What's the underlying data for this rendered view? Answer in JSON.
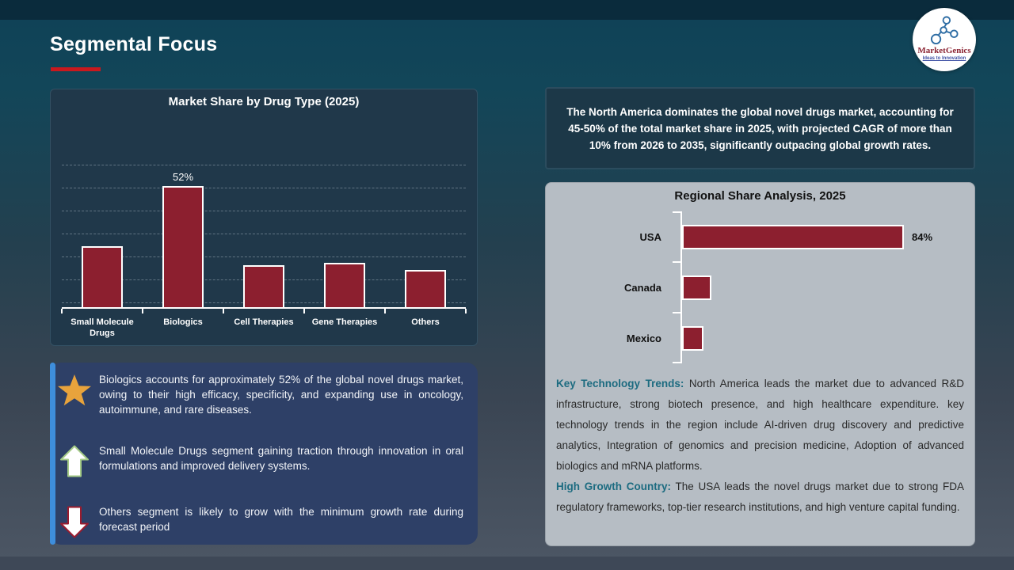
{
  "slide_title": "Segmental Focus",
  "logo": {
    "brand": "MarketGenics",
    "tagline": "Ideas to Innovation"
  },
  "highlight_box": {
    "text": "The North America dominates the global novel drugs market, accounting for 45-50% of the total market share in 2025, with projected CAGR of more than 10% from 2026 to 2035, significantly outpacing global growth rates."
  },
  "chart_data": [
    {
      "type": "bar",
      "title": "Market Share by Drug Type (2025)",
      "categories": [
        "Small Molecule Drugs",
        "Biologics",
        "Cell Therapies",
        "Gene Therapies",
        "Others"
      ],
      "values": [
        26,
        52,
        18,
        19,
        16
      ],
      "unit": "%",
      "data_labels": {
        "Biologics": "52%"
      },
      "ylim": [
        0,
        60
      ],
      "grid": "dashed-horizontal",
      "legend": "none",
      "bar_color": "#8C1F2F"
    },
    {
      "type": "bar",
      "orientation": "horizontal",
      "title": "Regional Share Analysis, 2025",
      "categories": [
        "USA",
        "Canada",
        "Mexico"
      ],
      "values": [
        84,
        11,
        8
      ],
      "unit": "%",
      "data_labels": {
        "USA": "84%"
      },
      "xlim": [
        0,
        100
      ],
      "grid": "off",
      "legend": "none",
      "bar_color": "#8C1F2F"
    }
  ],
  "insights": [
    {
      "icon": "star-icon",
      "text": "Biologics accounts for approximately 52% of the global novel drugs market, owing to their high efficacy, specificity, and expanding use in oncology, autoimmune, and rare diseases."
    },
    {
      "icon": "up-arrow-icon",
      "text": "Small Molecule Drugs segment gaining traction through innovation in oral formulations and improved delivery systems."
    },
    {
      "icon": "down-arrow-icon",
      "text": "Others segment is likely to grow with the minimum growth rate during forecast period"
    }
  ],
  "regional_text": [
    {
      "heading": "Key Technology Trends:",
      "body": " North America leads the market due to advanced R&D infrastructure, strong biotech presence, and high healthcare expenditure. key technology trends in the region include AI-driven drug discovery and predictive analytics, Integration of genomics and precision medicine, Adoption of advanced biologics and mRNA platforms."
    },
    {
      "heading": "High Growth Country:",
      "body": " The USA leads the novel drugs market due to strong FDA regulatory frameworks, top-tier research institutions, and high venture capital funding."
    }
  ],
  "colors": {
    "accent_red": "#C9191E",
    "bar_red": "#8C1F2F",
    "teal_heading": "#1C6B80",
    "insight_accent_blue": "#3E8EDC"
  }
}
